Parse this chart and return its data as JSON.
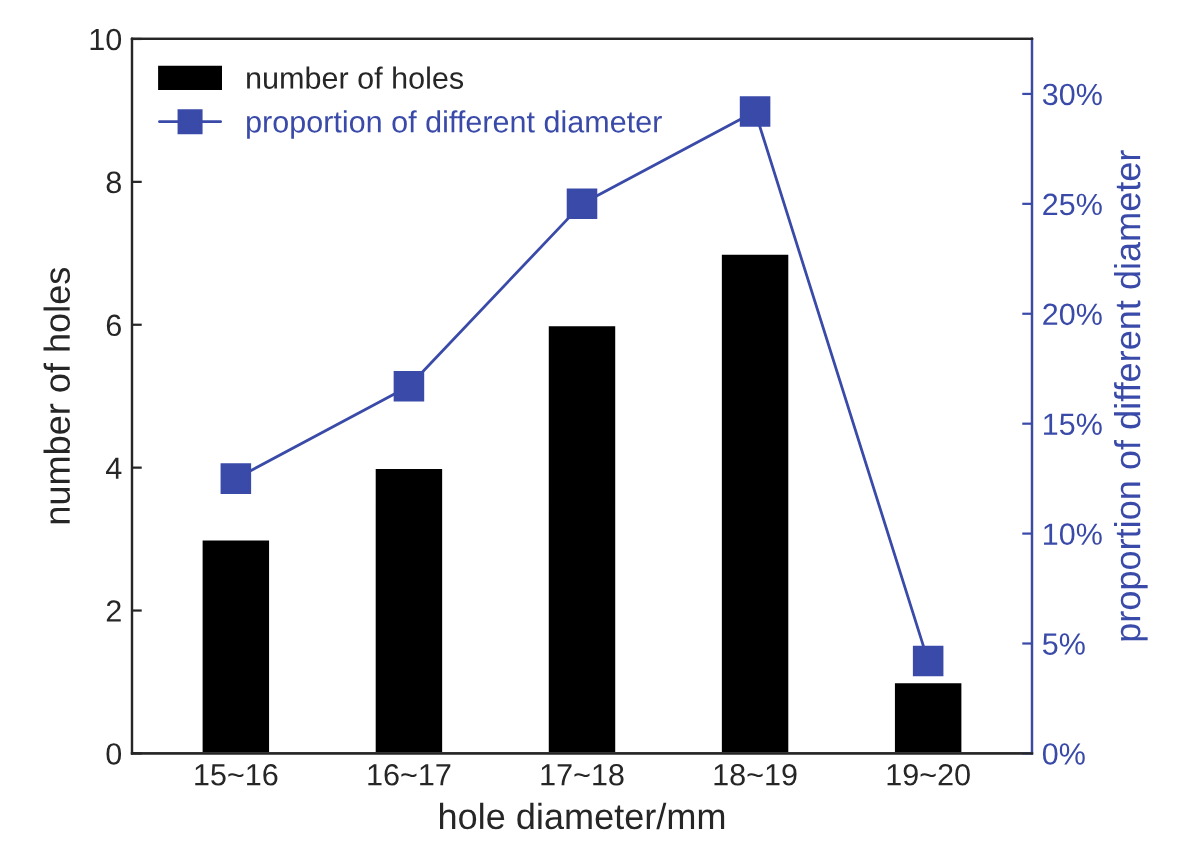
{
  "chart_data": {
    "type": "bar",
    "xlabel": "hole diameter/mm",
    "ylabel": "number of holes",
    "y2label": "proportion of different diameter",
    "categories": [
      "15~16",
      "16~17",
      "17~18",
      "18~19",
      "19~20"
    ],
    "series": [
      {
        "name": "number of holes",
        "color": "#000000",
        "values": [
          3,
          4,
          6,
          7,
          1
        ]
      },
      {
        "name": "proportion of different diameter",
        "type": "line",
        "axis": "y2",
        "color": "#3a4aa8",
        "values": [
          12.5,
          16.7,
          25,
          29.2,
          4.2
        ],
        "marker": "square"
      }
    ],
    "ylim": [
      0,
      10
    ],
    "yticks": [
      0,
      2,
      4,
      6,
      8,
      10
    ],
    "y2lim": [
      0,
      32.5
    ],
    "y2ticks": [
      {
        "value": 0,
        "label": "0%"
      },
      {
        "value": 5,
        "label": "5%"
      },
      {
        "value": 10,
        "label": "10%"
      },
      {
        "value": 15,
        "label": "15%"
      },
      {
        "value": 20,
        "label": "20%"
      },
      {
        "value": 25,
        "label": "25%"
      },
      {
        "value": 30,
        "label": "30%"
      }
    ],
    "legend": "top left",
    "grid": false
  }
}
